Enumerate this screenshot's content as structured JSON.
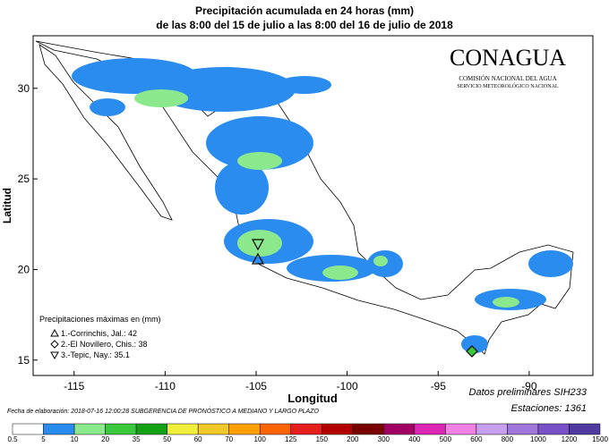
{
  "header": {
    "title": "Precipitación acumulada en 24 horas (mm)",
    "subtitle": "de las 8:00 del 15 de julio a las 8:00 del 16 de julio de 2018"
  },
  "logo": {
    "name": "CONAGUA",
    "line1": "COMISIÓN NACIONAL DEL AGUA",
    "line2": "SERVICIO METEOROLÓGICO NACIONAL"
  },
  "map": {
    "xlabel": "Longitud",
    "ylabel": "Latitud",
    "xlim": [
      -117.25,
      -86.5
    ],
    "ylim": [
      14.15,
      32.9
    ],
    "xticks": [
      -115,
      -110,
      -105,
      -100,
      -95,
      -90
    ],
    "yticks": [
      15,
      20,
      25,
      30
    ]
  },
  "maxima": {
    "title": "Precipitaciones máximas en (mm)",
    "entries": [
      "1.-Corrinchis, Jal.: 42",
      "2.-El Novillero, Chis.: 38",
      "3.-Tepic, Nay.: 35.1"
    ]
  },
  "footer": {
    "date": "Fecha de elaboración: 2018-07-16 12:00:28 SUBGERENCIA DE PRONÓSTICO A MEDIANO Y LARGO PLAZO",
    "note": "Datos preliminares SIH233",
    "stations": "Estaciones:  1361"
  },
  "colorbar": {
    "bounds": [
      0.5,
      5,
      10,
      20,
      35,
      50,
      60,
      70,
      100,
      125,
      150,
      200,
      300,
      400,
      500,
      600,
      800,
      1000,
      1200,
      1500
    ],
    "colors": [
      "#ffffff",
      "#2b8cf0",
      "#8ce88c",
      "#3cc83c",
      "#14a014",
      "#f0f03c",
      "#f0c828",
      "#ffa000",
      "#ff6400",
      "#e61e1e",
      "#b40000",
      "#780000",
      "#a00064",
      "#dc28b4",
      "#f082e6",
      "#c8a0f0",
      "#a078dc",
      "#7850c8",
      "#503ca0"
    ]
  }
}
